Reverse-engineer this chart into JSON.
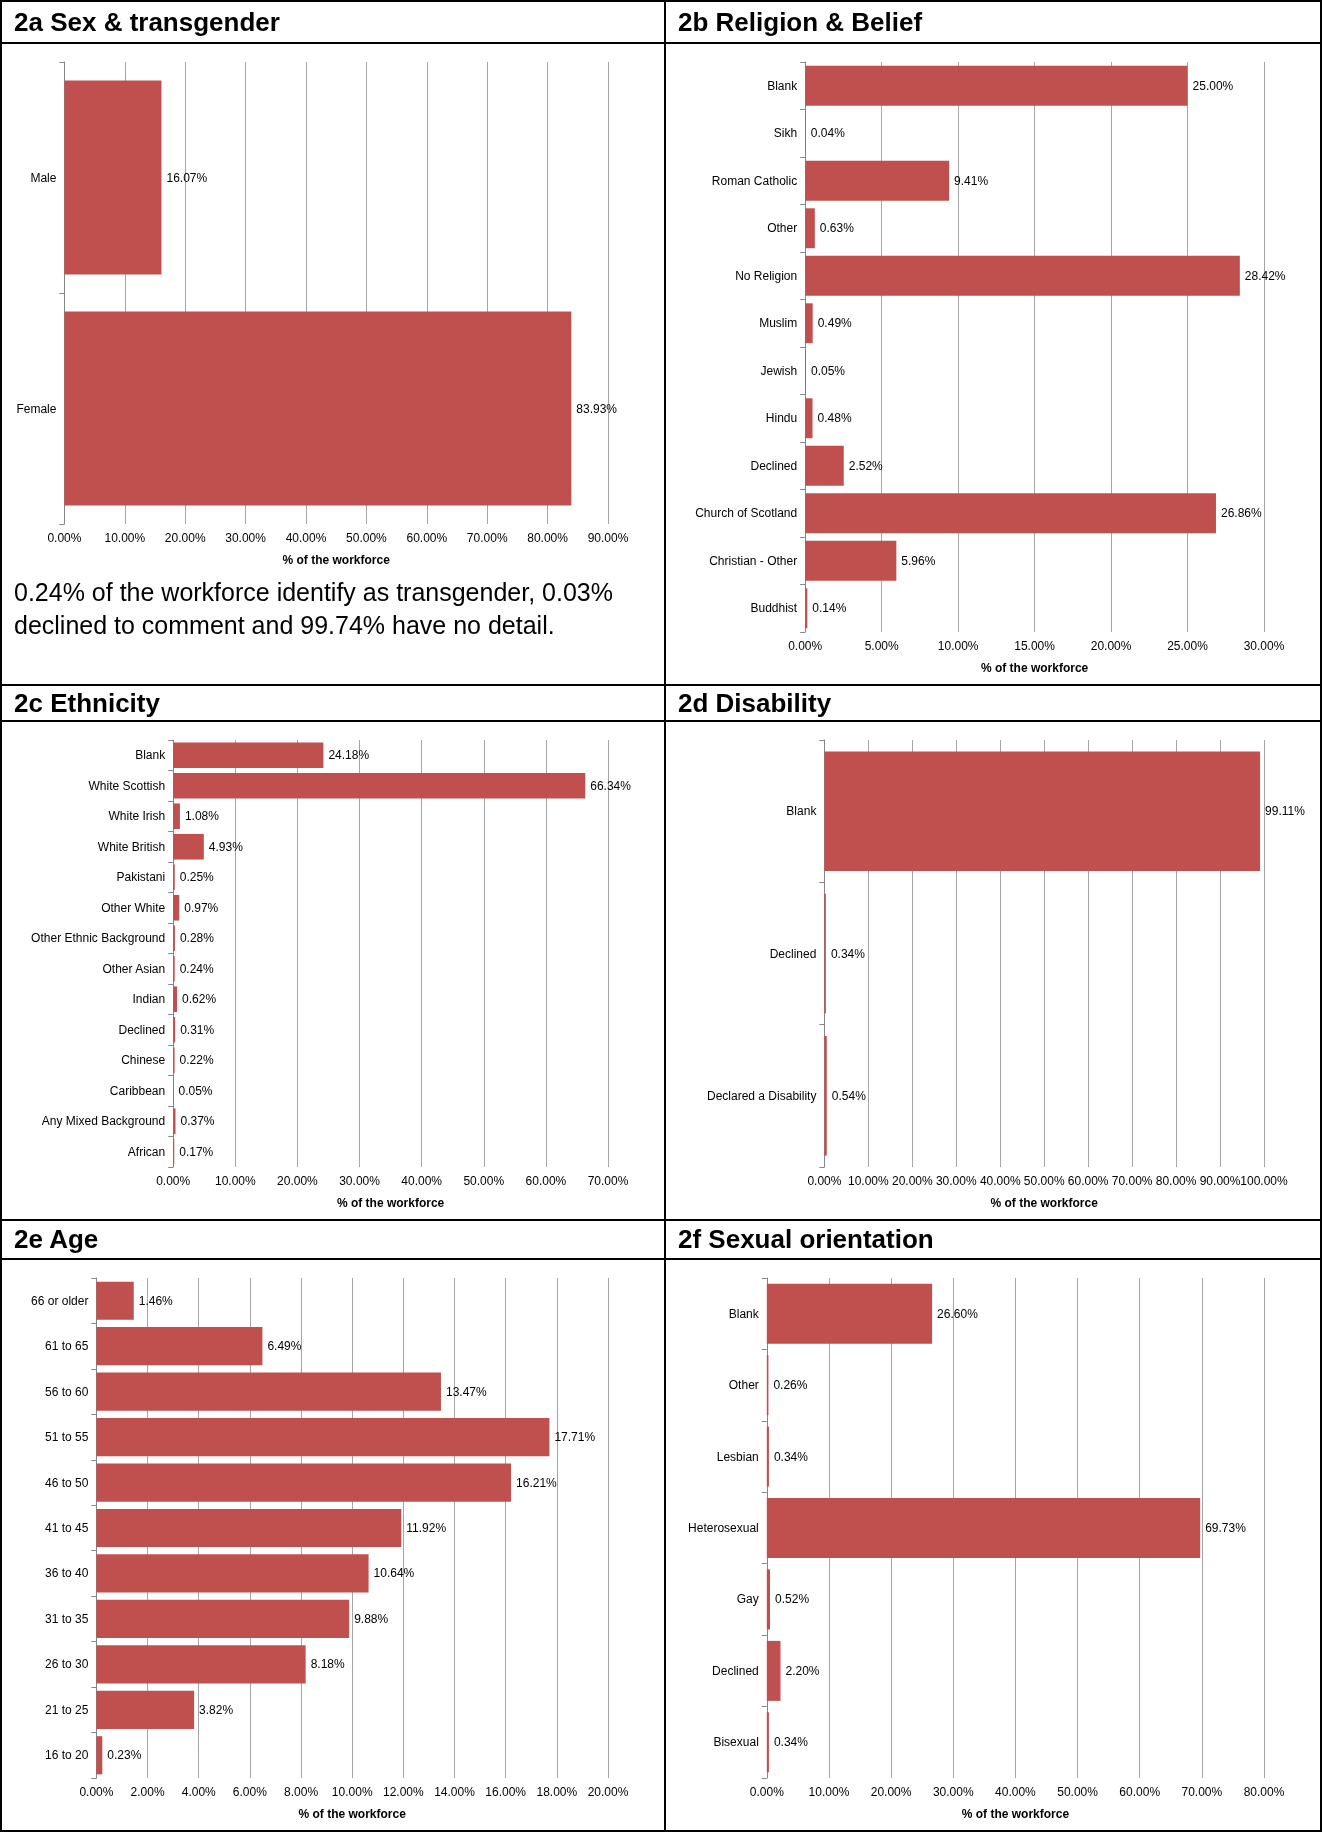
{
  "chart_data": [
    {
      "type": "bar",
      "orientation": "horizontal",
      "title": "2a  Sex & transgender",
      "xlabel": "% of the workforce",
      "categories": [
        "Male",
        "Female"
      ],
      "values": [
        16.07,
        83.93
      ],
      "value_labels": [
        "16.07%",
        "83.93%"
      ],
      "color": "#c0504d",
      "xlim": [
        0,
        90
      ],
      "xticks": [
        {
          "value": 0,
          "label": "0.00%"
        },
        {
          "value": 10,
          "label": "10.00%"
        },
        {
          "value": 20,
          "label": "20.00%"
        },
        {
          "value": 30,
          "label": "30.00%"
        },
        {
          "value": 40,
          "label": "40.00%"
        },
        {
          "value": 50,
          "label": "50.00%"
        },
        {
          "value": 60,
          "label": "60.00%"
        },
        {
          "value": 70,
          "label": "70.00%"
        },
        {
          "value": 80,
          "label": "80.00%"
        },
        {
          "value": 90,
          "label": "90.00%"
        }
      ],
      "grid": "x",
      "annotations": [
        "0.24% of the workforce identify as transgender, 0.03% declined to comment and 99.74% have no detail."
      ]
    },
    {
      "type": "bar",
      "orientation": "horizontal",
      "title": "2b  Religion & Belief",
      "xlabel": "% of the workforce",
      "categories": [
        "Blank",
        "Sikh",
        "Roman Catholic",
        "Other",
        "No Religion",
        "Muslim",
        "Jewish",
        "Hindu",
        "Declined",
        "Church of Scotland",
        "Christian - Other",
        "Buddhist"
      ],
      "values": [
        25.0,
        0.04,
        9.41,
        0.63,
        28.42,
        0.49,
        0.05,
        0.48,
        2.52,
        26.86,
        5.96,
        0.14
      ],
      "value_labels": [
        "25.00%",
        "0.04%",
        "9.41%",
        "0.63%",
        "28.42%",
        "0.49%",
        "0.05%",
        "0.48%",
        "2.52%",
        "26.86%",
        "5.96%",
        "0.14%"
      ],
      "color": "#c0504d",
      "xlim": [
        0,
        30
      ],
      "xticks": [
        {
          "value": 0,
          "label": "0.00%"
        },
        {
          "value": 5,
          "label": "5.00%"
        },
        {
          "value": 10,
          "label": "10.00%"
        },
        {
          "value": 15,
          "label": "15.00%"
        },
        {
          "value": 20,
          "label": "20.00%"
        },
        {
          "value": 25,
          "label": "25.00%"
        },
        {
          "value": 30,
          "label": "30.00%"
        }
      ],
      "grid": "x"
    },
    {
      "type": "bar",
      "orientation": "horizontal",
      "title": "2c  Ethnicity",
      "xlabel": "% of the workforce",
      "categories": [
        "Blank",
        "White Scottish",
        "White Irish",
        "White British",
        "Pakistani",
        "Other White",
        "Other Ethnic Background",
        "Other Asian",
        "Indian",
        "Declined",
        "Chinese",
        "Caribbean",
        "Any Mixed Background",
        "African"
      ],
      "values": [
        24.18,
        66.34,
        1.08,
        4.93,
        0.25,
        0.97,
        0.28,
        0.24,
        0.62,
        0.31,
        0.22,
        0.05,
        0.37,
        0.17
      ],
      "value_labels": [
        "24.18%",
        "66.34%",
        "1.08%",
        "4.93%",
        "0.25%",
        "0.97%",
        "0.28%",
        "0.24%",
        "0.62%",
        "0.31%",
        "0.22%",
        "0.05%",
        "0.37%",
        "0.17%"
      ],
      "color": "#c0504d",
      "xlim": [
        0,
        70
      ],
      "xticks": [
        {
          "value": 0,
          "label": "0.00%"
        },
        {
          "value": 10,
          "label": "10.00%"
        },
        {
          "value": 20,
          "label": "20.00%"
        },
        {
          "value": 30,
          "label": "30.00%"
        },
        {
          "value": 40,
          "label": "40.00%"
        },
        {
          "value": 50,
          "label": "50.00%"
        },
        {
          "value": 60,
          "label": "60.00%"
        },
        {
          "value": 70,
          "label": "70.00%"
        }
      ],
      "grid": "x"
    },
    {
      "type": "bar",
      "orientation": "horizontal",
      "title": "2d  Disability",
      "xlabel": "% of the workforce",
      "categories": [
        "Blank",
        "Declined",
        "Declared a Disability"
      ],
      "values": [
        99.11,
        0.34,
        0.54
      ],
      "value_labels": [
        "99.11%",
        "0.34%",
        "0.54%"
      ],
      "color": "#c0504d",
      "xlim": [
        0,
        100
      ],
      "xticks": [
        {
          "value": 0,
          "label": "0.00%"
        },
        {
          "value": 10,
          "label": "10.00%"
        },
        {
          "value": 20,
          "label": "20.00%"
        },
        {
          "value": 30,
          "label": "30.00%"
        },
        {
          "value": 40,
          "label": "40.00%"
        },
        {
          "value": 50,
          "label": "50.00%"
        },
        {
          "value": 60,
          "label": "60.00%"
        },
        {
          "value": 70,
          "label": "70.00%"
        },
        {
          "value": 80,
          "label": "80.00%"
        },
        {
          "value": 90,
          "label": "90.00%"
        },
        {
          "value": 100,
          "label": "100.00%"
        }
      ],
      "grid": "x"
    },
    {
      "type": "bar",
      "orientation": "horizontal",
      "title": "2e  Age",
      "xlabel": "% of the workforce",
      "categories": [
        "66 or older",
        "61 to 65",
        "56 to 60",
        "51 to 55",
        "46 to 50",
        "41 to 45",
        "36 to 40",
        "31 to 35",
        "26 to 30",
        "21 to 25",
        "16 to 20"
      ],
      "values": [
        1.46,
        6.49,
        13.47,
        17.71,
        16.21,
        11.92,
        10.64,
        9.88,
        8.18,
        3.82,
        0.23
      ],
      "value_labels": [
        "1.46%",
        "6.49%",
        "13.47%",
        "17.71%",
        "16.21%",
        "11.92%",
        "10.64%",
        "9.88%",
        "8.18%",
        "3.82%",
        "0.23%"
      ],
      "color": "#c0504d",
      "xlim": [
        0,
        20
      ],
      "xticks": [
        {
          "value": 0,
          "label": "0.00%"
        },
        {
          "value": 2,
          "label": "2.00%"
        },
        {
          "value": 4,
          "label": "4.00%"
        },
        {
          "value": 6,
          "label": "6.00%"
        },
        {
          "value": 8,
          "label": "8.00%"
        },
        {
          "value": 10,
          "label": "10.00%"
        },
        {
          "value": 12,
          "label": "12.00%"
        },
        {
          "value": 14,
          "label": "14.00%"
        },
        {
          "value": 16,
          "label": "16.00%"
        },
        {
          "value": 18,
          "label": "18.00%"
        },
        {
          "value": 20,
          "label": "20.00%"
        }
      ],
      "grid": "x"
    },
    {
      "type": "bar",
      "orientation": "horizontal",
      "title": "2f Sexual orientation",
      "xlabel": "% of the workforce",
      "categories": [
        "Blank",
        "Other",
        "Lesbian",
        "Heterosexual",
        "Gay",
        "Declined",
        "Bisexual"
      ],
      "values": [
        26.6,
        0.26,
        0.34,
        69.73,
        0.52,
        2.2,
        0.34
      ],
      "value_labels": [
        "26.60%",
        "0.26%",
        "0.34%",
        "69.73%",
        "0.52%",
        "2.20%",
        "0.34%"
      ],
      "color": "#c0504d",
      "xlim": [
        0,
        80
      ],
      "xticks": [
        {
          "value": 0,
          "label": "0.00%"
        },
        {
          "value": 10,
          "label": "10.00%"
        },
        {
          "value": 20,
          "label": "20.00%"
        },
        {
          "value": 30,
          "label": "30.00%"
        },
        {
          "value": 40,
          "label": "40.00%"
        },
        {
          "value": 50,
          "label": "50.00%"
        },
        {
          "value": 60,
          "label": "60.00%"
        },
        {
          "value": 70,
          "label": "70.00%"
        },
        {
          "value": 80,
          "label": "80.00%"
        }
      ],
      "grid": "x"
    }
  ]
}
